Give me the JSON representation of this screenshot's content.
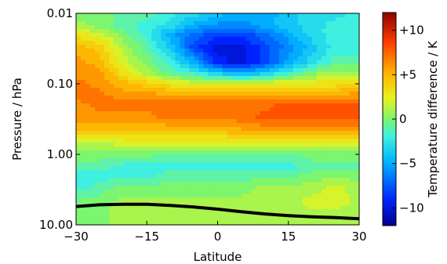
{
  "chart_data": {
    "type": "heatmap",
    "title": "",
    "xlabel": "Latitude",
    "ylabel": "Pressure / hPa",
    "xlim": [
      -30,
      30
    ],
    "ylim_pressure_hPa": [
      10,
      0.01
    ],
    "y_scale": "log",
    "y_reversed": true,
    "xticks": [
      -30,
      -15,
      0,
      15,
      30
    ],
    "xtick_labels": [
      "−30",
      "−15",
      "0",
      "15",
      "30"
    ],
    "yticks": [
      0.01,
      0.1,
      1,
      10
    ],
    "ytick_labels": [
      "0.01",
      "0.10",
      "1.00",
      "10.00"
    ],
    "latitudes": [
      -30,
      -25,
      -20,
      -15,
      -10,
      -5,
      0,
      5,
      10,
      15,
      20,
      25,
      30
    ],
    "pressures_hPa": [
      0.01,
      0.015,
      0.02,
      0.03,
      0.05,
      0.07,
      0.1,
      0.15,
      0.2,
      0.3,
      0.5,
      0.7,
      1.0,
      1.5,
      2.0,
      3.0,
      5.0,
      7.0,
      10.0
    ],
    "temperature_difference_K": [
      [
        0,
        0,
        -1,
        -1,
        -2,
        -3,
        -4,
        -5,
        -5,
        -4,
        -3,
        -3,
        -2
      ],
      [
        1,
        0,
        -1,
        -2,
        -3,
        -5,
        -6,
        -6,
        -5,
        -4,
        -3,
        -2,
        -2
      ],
      [
        3,
        2,
        0,
        -2,
        -5,
        -7,
        -8,
        -8,
        -7,
        -5,
        -3,
        -2,
        -2
      ],
      [
        5,
        4,
        1,
        -1,
        -4,
        -8,
        -10,
        -10,
        -8,
        -6,
        -4,
        -2,
        -2
      ],
      [
        6,
        5,
        2,
        0,
        -2,
        -5,
        -9,
        -10,
        -8,
        -5,
        -3,
        -1,
        -1
      ],
      [
        6,
        6,
        3,
        1,
        -1,
        -2,
        -4,
        -5,
        -4,
        -2,
        0,
        1,
        1
      ],
      [
        7,
        6,
        5,
        4,
        3,
        2,
        2,
        2,
        2,
        3,
        3,
        3,
        4
      ],
      [
        7,
        7,
        6,
        6,
        6,
        6,
        6,
        6,
        6,
        6,
        6,
        6,
        6
      ],
      [
        6,
        7,
        7,
        7,
        7,
        7,
        7,
        7,
        7,
        8,
        8,
        8,
        8
      ],
      [
        6,
        6,
        6,
        6,
        7,
        7,
        7,
        7,
        8,
        8,
        8,
        8,
        8
      ],
      [
        4,
        4,
        4,
        4,
        4,
        4,
        4,
        5,
        5,
        5,
        5,
        5,
        5
      ],
      [
        1,
        1,
        2,
        2,
        2,
        2,
        2,
        2,
        2,
        2,
        2,
        2,
        2
      ],
      [
        0,
        0,
        0,
        0,
        -1,
        -1,
        -1,
        -1,
        -1,
        -1,
        0,
        0,
        0
      ],
      [
        -1,
        -1,
        -2,
        -2,
        -2,
        -2,
        -2,
        -2,
        -2,
        -2,
        -1,
        -1,
        -1
      ],
      [
        -2,
        -2,
        -2,
        -2,
        -1,
        -1,
        -1,
        -1,
        -1,
        -1,
        0,
        0,
        0
      ],
      [
        -2,
        -1,
        0,
        0,
        0,
        0,
        0,
        0,
        1,
        1,
        1,
        2,
        1
      ],
      [
        0,
        0,
        1,
        1,
        1,
        1,
        1,
        1,
        1,
        1,
        2,
        2,
        1
      ],
      [
        0,
        0,
        1,
        1,
        1,
        1,
        1,
        1,
        1,
        1,
        1,
        1,
        1
      ],
      [
        0,
        0,
        1,
        1,
        1,
        1,
        1,
        1,
        1,
        1,
        1,
        1,
        1
      ]
    ],
    "surface_boundary": {
      "latitudes": [
        -30,
        -25,
        -20,
        -15,
        -10,
        -5,
        0,
        5,
        10,
        15,
        20,
        25,
        30
      ],
      "pressure_hPa": [
        5.5,
        5.2,
        5.1,
        5.1,
        5.3,
        5.6,
        6.0,
        6.5,
        7.0,
        7.4,
        7.7,
        7.9,
        8.2
      ]
    },
    "colorbar": {
      "label": "Temperature difference / K",
      "range": [
        -12,
        12
      ],
      "ticks": [
        10,
        5,
        0,
        -5,
        -10
      ],
      "tick_labels": [
        "+10",
        "+5",
        "0",
        "−5",
        "−10"
      ],
      "colormap": "rainbow"
    }
  }
}
